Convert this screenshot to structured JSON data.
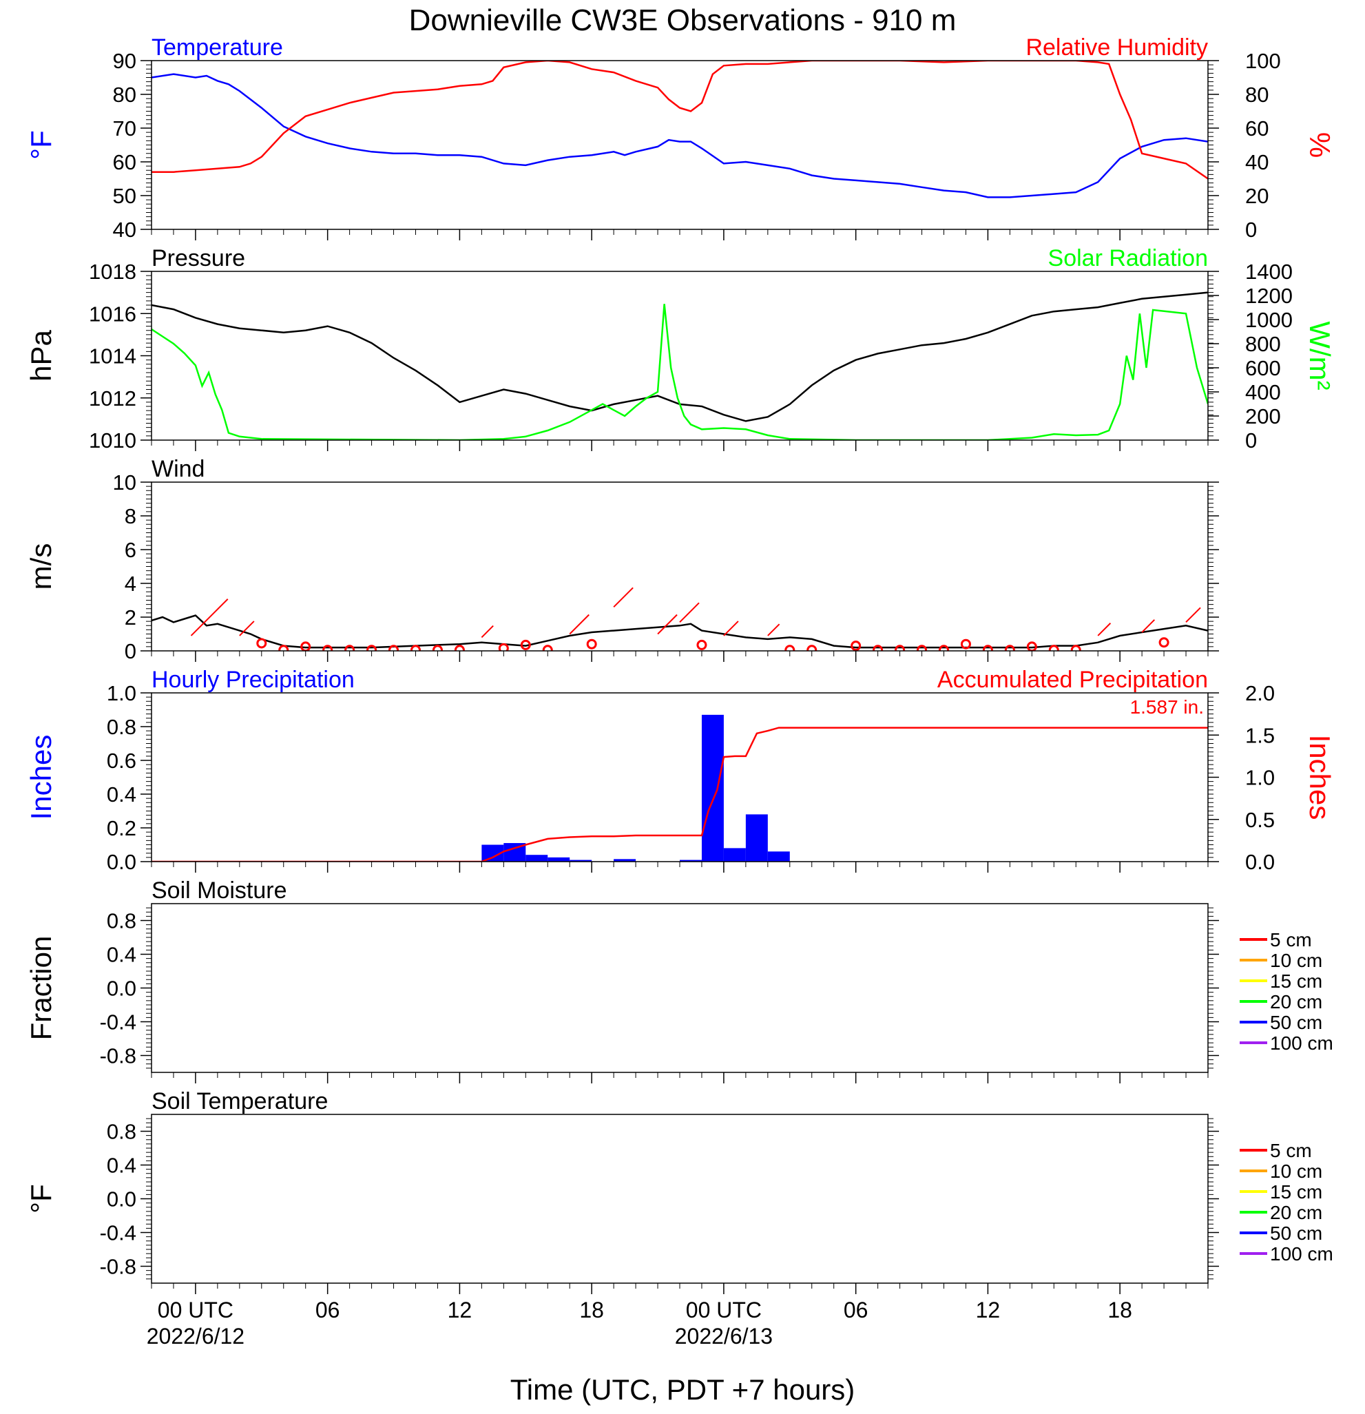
{
  "title": "Downieville CW3E Observations - 910 m",
  "xlabel": "Time (UTC, PDT +7 hours)",
  "time_axis": {
    "range_hours": [
      -2,
      46
    ],
    "ticks": [
      {
        "hour": 0,
        "label": "00 UTC",
        "date": "2022/6/12"
      },
      {
        "hour": 6,
        "label": "06",
        "date": ""
      },
      {
        "hour": 12,
        "label": "12",
        "date": ""
      },
      {
        "hour": 18,
        "label": "18",
        "date": ""
      },
      {
        "hour": 24,
        "label": "00 UTC",
        "date": "2022/6/13"
      },
      {
        "hour": 30,
        "label": "06",
        "date": ""
      },
      {
        "hour": 36,
        "label": "12",
        "date": ""
      },
      {
        "hour": 42,
        "label": "18",
        "date": ""
      }
    ]
  },
  "colors": {
    "temperature": "#0000ff",
    "humidity": "#ff0000",
    "pressure": "#000000",
    "solar": "#00ff00",
    "wind": "#000000",
    "wind_barb": "#ff0000",
    "precip_bar": "#0000ff",
    "precip_accum": "#ff0000"
  },
  "chart_data": [
    {
      "type": "line",
      "title_left": "Temperature",
      "title_right": "Relative Humidity",
      "ylabel_left": "°F",
      "ylabel_right": "%",
      "ylim_left": [
        40,
        90
      ],
      "yticks_left": [
        "40",
        "50",
        "60",
        "70",
        "80",
        "90"
      ],
      "ylim_right": [
        0,
        100
      ],
      "yticks_right": [
        "0",
        "20",
        "40",
        "60",
        "80",
        "100"
      ],
      "series": [
        {
          "name": "Temperature",
          "axis": "left",
          "x": [
            -2,
            -1,
            0,
            0.5,
            1,
            1.5,
            2,
            3,
            4,
            5,
            6,
            7,
            8,
            9,
            10,
            11,
            12,
            13,
            14,
            15,
            16,
            17,
            18,
            19,
            19.5,
            20,
            21,
            21.5,
            22,
            22.5,
            23,
            24,
            25,
            26,
            27,
            28,
            29,
            30,
            31,
            32,
            33,
            34,
            35,
            36,
            37,
            38,
            39,
            40,
            41,
            42,
            43,
            44,
            45,
            46
          ],
          "y": [
            85,
            86,
            85,
            85.5,
            84,
            83,
            81,
            76,
            70.5,
            67.5,
            65.5,
            64,
            63,
            62.5,
            62.5,
            62,
            62,
            61.5,
            59.5,
            59,
            60.5,
            61.5,
            62,
            63,
            62,
            63,
            64.5,
            66.5,
            66,
            66,
            64,
            59.5,
            60,
            59,
            58,
            56,
            55,
            54.5,
            54,
            53.5,
            52.5,
            51.5,
            51,
            49.5,
            49.5,
            50,
            50.5,
            51,
            54,
            61,
            64.5,
            66.5,
            67,
            66
          ]
        },
        {
          "name": "Relative Humidity",
          "axis": "right",
          "x": [
            -2,
            -1,
            0,
            1,
            2,
            2.5,
            3,
            4,
            5,
            6,
            7,
            8,
            9,
            10,
            11,
            12,
            13,
            13.5,
            14,
            15,
            16,
            17,
            18,
            19,
            20,
            21,
            21.5,
            22,
            22.5,
            23,
            23.5,
            24,
            25,
            26,
            27,
            28,
            30,
            32,
            34,
            36,
            38,
            40,
            41,
            41.5,
            42,
            42.5,
            43,
            44,
            45,
            46
          ],
          "y": [
            34,
            34,
            35,
            36,
            37,
            39,
            43,
            57,
            67,
            71,
            75,
            78,
            81,
            82,
            83,
            85,
            86,
            88,
            96,
            99,
            100,
            99,
            95,
            93,
            88,
            84,
            77,
            72,
            70,
            75,
            92,
            97,
            98,
            98,
            99,
            100,
            100,
            100,
            99,
            100,
            100,
            100,
            99,
            98,
            80,
            65,
            45,
            42,
            39,
            30
          ]
        }
      ]
    },
    {
      "type": "line",
      "title_left": "Pressure",
      "title_right": "Solar Radiation",
      "ylabel_left": "hPa",
      "ylabel_right": "W/m²",
      "ylim_left": [
        1010,
        1018
      ],
      "yticks_left": [
        "1010",
        "1012",
        "1014",
        "1016",
        "1018"
      ],
      "ylim_right": [
        0,
        1400
      ],
      "yticks_right": [
        "0",
        "200",
        "400",
        "600",
        "800",
        "1000",
        "1200",
        "1400"
      ],
      "series": [
        {
          "name": "Pressure",
          "axis": "left",
          "x": [
            -2,
            -1,
            0,
            1,
            2,
            3,
            4,
            5,
            6,
            7,
            8,
            9,
            10,
            11,
            12,
            13,
            14,
            15,
            16,
            17,
            18,
            19,
            20,
            21,
            22,
            23,
            24,
            25,
            26,
            27,
            28,
            29,
            30,
            31,
            32,
            33,
            34,
            35,
            36,
            37,
            38,
            39,
            40,
            41,
            42,
            43,
            44,
            45,
            46
          ],
          "y": [
            1016.4,
            1016.2,
            1015.8,
            1015.5,
            1015.3,
            1015.2,
            1015.1,
            1015.2,
            1015.4,
            1015.1,
            1014.6,
            1013.9,
            1013.3,
            1012.6,
            1011.8,
            1012.1,
            1012.4,
            1012.2,
            1011.9,
            1011.6,
            1011.4,
            1011.7,
            1011.9,
            1012.1,
            1011.7,
            1011.6,
            1011.2,
            1010.9,
            1011.1,
            1011.7,
            1012.6,
            1013.3,
            1013.8,
            1014.1,
            1014.3,
            1014.5,
            1014.6,
            1014.8,
            1015.1,
            1015.5,
            1015.9,
            1016.1,
            1016.2,
            1016.3,
            1016.5,
            1016.7,
            1016.8,
            1016.9,
            1017.0
          ]
        },
        {
          "name": "Solar Radiation",
          "axis": "right",
          "x": [
            -2,
            -1.5,
            -1,
            -0.5,
            0,
            0.3,
            0.6,
            0.9,
            1.2,
            1.5,
            2,
            3,
            12,
            14,
            15,
            16,
            17,
            18,
            18.5,
            19,
            19.5,
            20,
            20.5,
            21,
            21.3,
            21.6,
            21.9,
            22.2,
            22.5,
            23,
            24,
            25,
            26,
            27,
            30,
            36,
            38,
            39,
            40,
            41,
            41.5,
            42,
            42.3,
            42.6,
            42.9,
            43.2,
            43.5,
            44,
            44.5,
            45,
            45.5,
            46
          ],
          "y": [
            920,
            860,
            800,
            720,
            620,
            450,
            560,
            380,
            250,
            60,
            30,
            10,
            0,
            10,
            30,
            80,
            150,
            250,
            300,
            250,
            200,
            280,
            350,
            400,
            1130,
            600,
            350,
            200,
            130,
            90,
            100,
            90,
            40,
            10,
            0,
            0,
            20,
            50,
            40,
            45,
            80,
            300,
            700,
            500,
            1050,
            600,
            1080,
            1070,
            1060,
            1050,
            600,
            300
          ]
        }
      ]
    },
    {
      "type": "line",
      "title_left": "Wind",
      "ylabel_left": "m/s",
      "ylim_left": [
        0,
        10
      ],
      "yticks_left": [
        "0",
        "2",
        "4",
        "6",
        "8",
        "10"
      ],
      "series": [
        {
          "name": "Wind",
          "axis": "left",
          "x": [
            -2,
            -1.5,
            -1,
            -0.5,
            0,
            0.5,
            1,
            1.5,
            2,
            2.5,
            3,
            4,
            5,
            6,
            8,
            10,
            12,
            13,
            14,
            15,
            16,
            17,
            18,
            19,
            20,
            21,
            22,
            22.5,
            23,
            24,
            25,
            26,
            27,
            28,
            29,
            30,
            34,
            38,
            39,
            40,
            41,
            42,
            43,
            44,
            45,
            46
          ],
          "y": [
            1.8,
            2.0,
            1.7,
            1.9,
            2.1,
            1.5,
            1.6,
            1.4,
            1.2,
            1.0,
            0.7,
            0.3,
            0.2,
            0.2,
            0.2,
            0.3,
            0.4,
            0.5,
            0.4,
            0.3,
            0.6,
            0.9,
            1.1,
            1.2,
            1.3,
            1.4,
            1.5,
            1.6,
            1.2,
            1.0,
            0.8,
            0.7,
            0.8,
            0.7,
            0.3,
            0.2,
            0.2,
            0.2,
            0.3,
            0.3,
            0.5,
            0.9,
            1.1,
            1.3,
            1.5,
            1.2
          ],
          "barbs": [
            {
              "x": -0.2,
              "speed": 0.9,
              "dir_len": 3.8
            },
            {
              "x": 2,
              "speed": 0.9,
              "dir_len": 1.5
            },
            {
              "x": 3,
              "speed": 0.45,
              "calm": true
            },
            {
              "x": 4,
              "speed": 0.05,
              "calm": true
            },
            {
              "x": 5,
              "speed": 0.25,
              "calm": true
            },
            {
              "x": 6,
              "speed": 0.05,
              "calm": true
            },
            {
              "x": 7,
              "speed": 0.05,
              "calm": true
            },
            {
              "x": 8,
              "speed": 0.05,
              "calm": true
            },
            {
              "x": 9,
              "speed": 0.05,
              "calm": true
            },
            {
              "x": 10,
              "speed": 0.05,
              "calm": true
            },
            {
              "x": 11,
              "speed": 0.05,
              "calm": true
            },
            {
              "x": 12,
              "speed": 0.05,
              "calm": true
            },
            {
              "x": 13,
              "speed": 0.8,
              "dir_len": 1.2
            },
            {
              "x": 14,
              "speed": 0.15,
              "calm": true
            },
            {
              "x": 15,
              "speed": 0.35,
              "calm": true
            },
            {
              "x": 16,
              "speed": 0.05,
              "calm": true
            },
            {
              "x": 17,
              "speed": 1.0,
              "dir_len": 2.0
            },
            {
              "x": 18,
              "speed": 0.4,
              "calm": true
            },
            {
              "x": 19,
              "speed": 2.6,
              "dir_len": 2.0
            },
            {
              "x": 21,
              "speed": 1.0,
              "dir_len": 2.0
            },
            {
              "x": 22,
              "speed": 1.7,
              "dir_len": 2.0
            },
            {
              "x": 23,
              "speed": 0.35,
              "calm": true
            },
            {
              "x": 24,
              "speed": 0.9,
              "dir_len": 1.5
            },
            {
              "x": 26,
              "speed": 0.9,
              "dir_len": 1.2
            },
            {
              "x": 27,
              "speed": 0.05,
              "calm": true
            },
            {
              "x": 28,
              "speed": 0.05,
              "calm": true
            },
            {
              "x": 30,
              "speed": 0.3,
              "calm": true
            },
            {
              "x": 31,
              "speed": 0.05,
              "calm": true
            },
            {
              "x": 32,
              "speed": 0.05,
              "calm": true
            },
            {
              "x": 33,
              "speed": 0.05,
              "calm": true
            },
            {
              "x": 34,
              "speed": 0.05,
              "calm": true
            },
            {
              "x": 35,
              "speed": 0.4,
              "calm": true
            },
            {
              "x": 36,
              "speed": 0.05,
              "calm": true
            },
            {
              "x": 37,
              "speed": 0.05,
              "calm": true
            },
            {
              "x": 38,
              "speed": 0.25,
              "calm": true
            },
            {
              "x": 39,
              "speed": 0.05,
              "calm": true
            },
            {
              "x": 40,
              "speed": 0.05,
              "calm": true
            },
            {
              "x": 41,
              "speed": 0.9,
              "dir_len": 1.3
            },
            {
              "x": 43,
              "speed": 1.1,
              "dir_len": 1.3
            },
            {
              "x": 44,
              "speed": 0.5,
              "calm": true
            },
            {
              "x": 45,
              "speed": 1.7,
              "dir_len": 1.5
            }
          ]
        }
      ]
    },
    {
      "type": "bar",
      "title_left": "Hourly Precipitation",
      "title_right": "Accumulated Precipitation",
      "annotation": "1.587 in.",
      "ylabel_left": "Inches",
      "ylabel_right": "Inches",
      "ylim_left": [
        0,
        1
      ],
      "yticks_left": [
        "0.0",
        "0.2",
        "0.4",
        "0.6",
        "0.8",
        "1.0"
      ],
      "ylim_right": [
        0,
        2
      ],
      "yticks_right": [
        "0.0",
        "0.5",
        "1.0",
        "1.5",
        "2.0"
      ],
      "series": [
        {
          "name": "Hourly Precipitation",
          "axis": "left",
          "x": [
            13,
            14,
            15,
            16,
            17,
            19,
            22,
            23,
            24,
            25,
            26
          ],
          "values": [
            0.1,
            0.11,
            0.04,
            0.025,
            0.01,
            0.015,
            0.01,
            0.87,
            0.08,
            0.28,
            0.06
          ]
        },
        {
          "name": "Accumulated Precipitation",
          "axis": "right",
          "x": [
            -2,
            13,
            13.5,
            14,
            15,
            16,
            17,
            18,
            19,
            20,
            21,
            22,
            23,
            23.3,
            23.7,
            24,
            24.5,
            25,
            25.5,
            26,
            26.5,
            27,
            46
          ],
          "y": [
            0,
            0,
            0.05,
            0.12,
            0.2,
            0.27,
            0.29,
            0.3,
            0.3,
            0.31,
            0.31,
            0.31,
            0.31,
            0.6,
            0.85,
            1.24,
            1.25,
            1.25,
            1.52,
            1.55,
            1.587,
            1.587,
            1.587
          ]
        }
      ]
    },
    {
      "type": "line",
      "title_left": "Soil Moisture",
      "ylabel_left": "Fraction",
      "ylim_left": [
        -1,
        1
      ],
      "yticks_left": [
        "-0.8",
        "-0.4",
        "0.0",
        "0.4",
        "0.8"
      ],
      "legend": [
        {
          "label": "5 cm",
          "color": "#ff0000"
        },
        {
          "label": "10 cm",
          "color": "#ffa500"
        },
        {
          "label": "15 cm",
          "color": "#ffff00"
        },
        {
          "label": "20 cm",
          "color": "#00ff00"
        },
        {
          "label": "50 cm",
          "color": "#0000ff"
        },
        {
          "label": "100 cm",
          "color": "#a020f0"
        }
      ],
      "series": []
    },
    {
      "type": "line",
      "title_left": "Soil Temperature",
      "ylabel_left": "°F",
      "ylim_left": [
        -1,
        1
      ],
      "yticks_left": [
        "-0.8",
        "-0.4",
        "0.0",
        "0.4",
        "0.8"
      ],
      "legend": [
        {
          "label": "5 cm",
          "color": "#ff0000"
        },
        {
          "label": "10 cm",
          "color": "#ffa500"
        },
        {
          "label": "15 cm",
          "color": "#ffff00"
        },
        {
          "label": "20 cm",
          "color": "#00ff00"
        },
        {
          "label": "50 cm",
          "color": "#0000ff"
        },
        {
          "label": "100 cm",
          "color": "#a020f0"
        }
      ],
      "series": []
    }
  ]
}
